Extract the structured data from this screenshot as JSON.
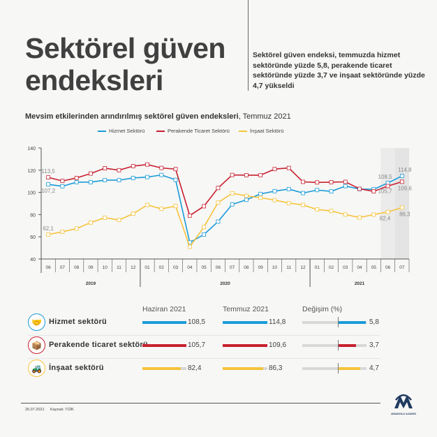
{
  "header": {
    "title": "Sektörel güven endeksleri",
    "subtitle": "Sektörel güven endeksi, temmuzda hizmet sektöründe yüzde 5,8, perakende ticaret sektöründe yüzde 3,7 ve inşaat sektöründe yüzde 4,7 yükseldi"
  },
  "chart_data": {
    "type": "line",
    "title": "Mevsim etkilerinden arındırılmış sektörel güven endeksleri",
    "title_suffix": ", Temmuz 2021",
    "x": [
      "06",
      "07",
      "08",
      "09",
      "10",
      "11",
      "12",
      "01",
      "02",
      "03",
      "04",
      "05",
      "06",
      "07",
      "08",
      "09",
      "10",
      "11",
      "12",
      "01",
      "02",
      "03",
      "04",
      "05",
      "06",
      "07"
    ],
    "years": [
      {
        "label": "2019",
        "from": 0,
        "to": 6
      },
      {
        "label": "2020",
        "from": 7,
        "to": 18
      },
      {
        "label": "2021",
        "from": 19,
        "to": 25
      }
    ],
    "ylim": [
      40,
      140
    ],
    "yticks": [
      40,
      60,
      80,
      100,
      120,
      140
    ],
    "highlight": [
      "06",
      "07"
    ],
    "legend_position": "top",
    "series": [
      {
        "name": "Hizmet Sektörü",
        "color": "#1a9bd7",
        "values": [
          107.2,
          105.5,
          109.2,
          109.2,
          111,
          111,
          113,
          113.8,
          115.7,
          111.3,
          54.9,
          62,
          73.7,
          89.2,
          93.3,
          98.6,
          101.1,
          103,
          99.4,
          102.1,
          100.9,
          105.7,
          103,
          102.8,
          108.5,
          114.8
        ],
        "labels": {
          "0": "107,2",
          "24": "108,5",
          "25": "114,8"
        }
      },
      {
        "name": "Perakende Ticaret Sektörü",
        "color": "#c8202f",
        "values": [
          113.5,
          110.3,
          113,
          117,
          121.8,
          120,
          123.7,
          125.1,
          122,
          121,
          79.1,
          87.5,
          104,
          115.7,
          115.5,
          115.5,
          121,
          122,
          109.5,
          109,
          109.2,
          109.5,
          103.2,
          100.9,
          105.7,
          109.6
        ],
        "labels": {
          "0": "113,5",
          "24": "105,7",
          "25": "109,6"
        }
      },
      {
        "name": "İnşaat Sektörü",
        "color": "#f5c33b",
        "values": [
          62.1,
          64.5,
          67.4,
          72.8,
          77.2,
          75.1,
          80.8,
          88.7,
          85.2,
          87.7,
          50.9,
          68.8,
          90.8,
          99.2,
          96.9,
          95.2,
          93.1,
          90.4,
          88.7,
          84.6,
          83.3,
          80,
          77.4,
          80,
          82.4,
          86.3
        ],
        "labels": {
          "0": "62,1",
          "24": "82,4",
          "25": "86,3"
        }
      }
    ]
  },
  "table": {
    "headers": [
      "Haziran 2021",
      "Temmuz 2021",
      "Değişim (%)"
    ],
    "rows": [
      {
        "label": "Hizmet sektörü",
        "icon": "handshake-icon",
        "color": "#1a9bd7",
        "june": 108.5,
        "june_label": "108,5",
        "july": 114.8,
        "july_label": "114,8",
        "change": 5.8,
        "change_label": "5,8"
      },
      {
        "label": "Perakende ticaret sektörü",
        "icon": "package-icon",
        "color": "#c8202f",
        "june": 105.7,
        "june_label": "105,7",
        "july": 109.6,
        "july_label": "109,6",
        "change": 3.7,
        "change_label": "3,7"
      },
      {
        "label": "İnşaat sektörü",
        "icon": "excavator-icon",
        "color": "#f5c33b",
        "june": 82.4,
        "june_label": "82,4",
        "july": 86.3,
        "july_label": "86,3",
        "change": 4.7,
        "change_label": "4,7"
      }
    ]
  },
  "footer": {
    "date": "26.07.2021",
    "source": "Kaynak: TÜİK",
    "logo_text": "ANADOLU AJANSI"
  }
}
